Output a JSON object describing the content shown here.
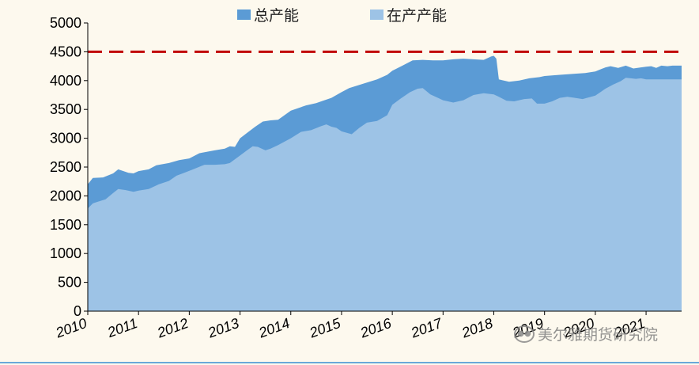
{
  "chart_data": {
    "type": "area",
    "title": "",
    "xlabel": "",
    "ylabel": "",
    "ylim": [
      0,
      5000
    ],
    "xlim": [
      2010,
      2021.7
    ],
    "y_ticks": [
      "0",
      "500",
      "1000",
      "1500",
      "2000",
      "2500",
      "3000",
      "3500",
      "4000",
      "4500",
      "5000"
    ],
    "x_ticks": [
      "2010",
      "2011",
      "2012",
      "2013",
      "2014",
      "2015",
      "2016",
      "2017",
      "2018",
      "2019",
      "2020",
      "2021"
    ],
    "legend_position": "top",
    "reference_line": {
      "y": 4500,
      "color": "#c00000",
      "style": "dashed"
    },
    "series": [
      {
        "name": "总产能",
        "color": "#5b9bd5",
        "points": [
          [
            2010.0,
            2200
          ],
          [
            2010.1,
            2310
          ],
          [
            2010.3,
            2320
          ],
          [
            2010.5,
            2390
          ],
          [
            2010.6,
            2460
          ],
          [
            2010.8,
            2400
          ],
          [
            2010.9,
            2390
          ],
          [
            2011.0,
            2430
          ],
          [
            2011.2,
            2460
          ],
          [
            2011.35,
            2530
          ],
          [
            2011.6,
            2570
          ],
          [
            2011.8,
            2620
          ],
          [
            2012.0,
            2650
          ],
          [
            2012.2,
            2740
          ],
          [
            2012.5,
            2790
          ],
          [
            2012.7,
            2820
          ],
          [
            2012.8,
            2860
          ],
          [
            2012.9,
            2850
          ],
          [
            2013.0,
            3000
          ],
          [
            2013.15,
            3100
          ],
          [
            2013.3,
            3200
          ],
          [
            2013.45,
            3290
          ],
          [
            2013.6,
            3310
          ],
          [
            2013.75,
            3320
          ],
          [
            2014.0,
            3480
          ],
          [
            2014.3,
            3570
          ],
          [
            2014.5,
            3610
          ],
          [
            2014.8,
            3700
          ],
          [
            2015.0,
            3800
          ],
          [
            2015.15,
            3870
          ],
          [
            2015.4,
            3940
          ],
          [
            2015.7,
            4020
          ],
          [
            2015.9,
            4100
          ],
          [
            2016.0,
            4170
          ],
          [
            2016.2,
            4260
          ],
          [
            2016.4,
            4350
          ],
          [
            2016.6,
            4360
          ],
          [
            2016.8,
            4350
          ],
          [
            2017.0,
            4350
          ],
          [
            2017.2,
            4370
          ],
          [
            2017.4,
            4380
          ],
          [
            2017.6,
            4370
          ],
          [
            2017.8,
            4360
          ],
          [
            2017.95,
            4420
          ],
          [
            2018.0,
            4430
          ],
          [
            2018.05,
            4380
          ],
          [
            2018.1,
            4020
          ],
          [
            2018.3,
            3980
          ],
          [
            2018.5,
            4000
          ],
          [
            2018.7,
            4040
          ],
          [
            2018.9,
            4060
          ],
          [
            2019.0,
            4080
          ],
          [
            2019.3,
            4100
          ],
          [
            2019.6,
            4120
          ],
          [
            2019.8,
            4130
          ],
          [
            2020.0,
            4160
          ],
          [
            2020.2,
            4230
          ],
          [
            2020.3,
            4250
          ],
          [
            2020.45,
            4220
          ],
          [
            2020.6,
            4260
          ],
          [
            2020.75,
            4210
          ],
          [
            2020.9,
            4230
          ],
          [
            2021.0,
            4240
          ],
          [
            2021.1,
            4250
          ],
          [
            2021.2,
            4220
          ],
          [
            2021.3,
            4260
          ],
          [
            2021.42,
            4250
          ],
          [
            2021.52,
            4260
          ],
          [
            2021.7,
            4260
          ]
        ]
      },
      {
        "name": "在产产能",
        "color": "#9dc3e6",
        "points": [
          [
            2010.0,
            1780
          ],
          [
            2010.1,
            1870
          ],
          [
            2010.2,
            1900
          ],
          [
            2010.35,
            1940
          ],
          [
            2010.5,
            2050
          ],
          [
            2010.6,
            2120
          ],
          [
            2010.75,
            2100
          ],
          [
            2010.9,
            2070
          ],
          [
            2011.0,
            2090
          ],
          [
            2011.2,
            2120
          ],
          [
            2011.4,
            2200
          ],
          [
            2011.6,
            2260
          ],
          [
            2011.75,
            2350
          ],
          [
            2011.9,
            2400
          ],
          [
            2012.1,
            2470
          ],
          [
            2012.3,
            2540
          ],
          [
            2012.5,
            2540
          ],
          [
            2012.7,
            2550
          ],
          [
            2012.8,
            2570
          ],
          [
            2013.0,
            2700
          ],
          [
            2013.15,
            2800
          ],
          [
            2013.25,
            2860
          ],
          [
            2013.35,
            2850
          ],
          [
            2013.5,
            2790
          ],
          [
            2013.6,
            2820
          ],
          [
            2013.75,
            2880
          ],
          [
            2014.0,
            3000
          ],
          [
            2014.2,
            3110
          ],
          [
            2014.4,
            3140
          ],
          [
            2014.6,
            3210
          ],
          [
            2014.7,
            3240
          ],
          [
            2014.8,
            3200
          ],
          [
            2014.9,
            3180
          ],
          [
            2015.0,
            3120
          ],
          [
            2015.2,
            3070
          ],
          [
            2015.35,
            3180
          ],
          [
            2015.5,
            3270
          ],
          [
            2015.7,
            3300
          ],
          [
            2015.9,
            3400
          ],
          [
            2016.0,
            3580
          ],
          [
            2016.15,
            3680
          ],
          [
            2016.35,
            3800
          ],
          [
            2016.5,
            3860
          ],
          [
            2016.6,
            3870
          ],
          [
            2016.75,
            3760
          ],
          [
            2016.9,
            3700
          ],
          [
            2017.0,
            3660
          ],
          [
            2017.2,
            3620
          ],
          [
            2017.4,
            3660
          ],
          [
            2017.6,
            3750
          ],
          [
            2017.8,
            3780
          ],
          [
            2018.0,
            3760
          ],
          [
            2018.1,
            3720
          ],
          [
            2018.25,
            3650
          ],
          [
            2018.4,
            3640
          ],
          [
            2018.6,
            3680
          ],
          [
            2018.75,
            3690
          ],
          [
            2018.85,
            3600
          ],
          [
            2019.0,
            3600
          ],
          [
            2019.15,
            3640
          ],
          [
            2019.3,
            3700
          ],
          [
            2019.45,
            3720
          ],
          [
            2019.6,
            3700
          ],
          [
            2019.75,
            3680
          ],
          [
            2020.0,
            3740
          ],
          [
            2020.2,
            3860
          ],
          [
            2020.35,
            3930
          ],
          [
            2020.5,
            3990
          ],
          [
            2020.6,
            4050
          ],
          [
            2020.7,
            4040
          ],
          [
            2020.8,
            4030
          ],
          [
            2020.9,
            4040
          ],
          [
            2021.0,
            4020
          ],
          [
            2021.7,
            4020
          ]
        ]
      }
    ]
  },
  "watermark": {
    "text": "美尔雅期货研究院",
    "icon": "wechat-icon"
  }
}
